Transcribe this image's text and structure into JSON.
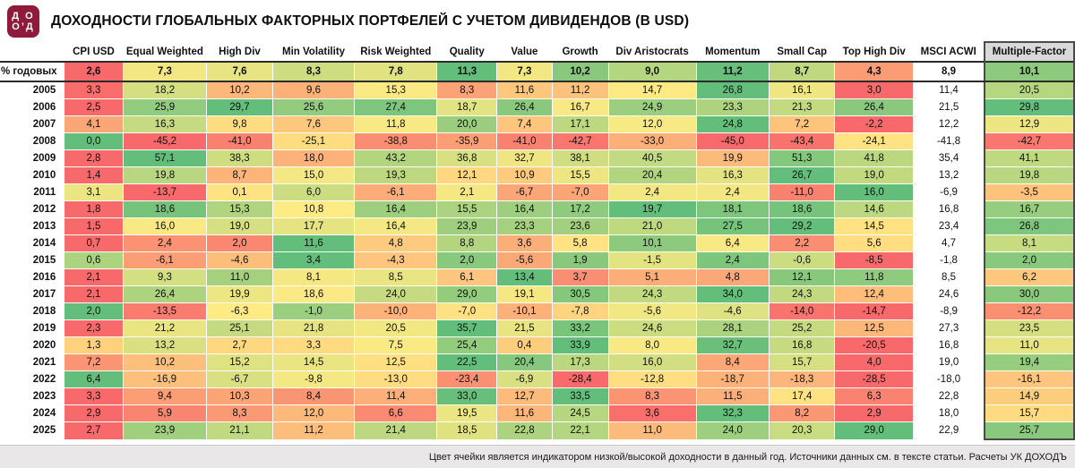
{
  "header": {
    "title": "ДОХОДНОСТИ ГЛОБАЛЬНЫХ ФАКТОРНЫХ ПОРТФЕЛЕЙ С УЧЕТОМ ДИВИДЕНДОВ (В USD)",
    "logo_line1": "Д О",
    "logo_line2": "О’Д"
  },
  "chart_data": {
    "type": "heatmap",
    "title": "ДОХОДНОСТИ ГЛОБАЛЬНЫХ ФАКТОРНЫХ ПОРТФЕЛЕЙ С УЧЕТОМ ДИВИДЕНДОВ (В USD)",
    "annualized_label": "% годовых",
    "columns": [
      "CPI USD",
      "Equal Weighted",
      "High Div",
      "Min Volatility",
      "Risk Weighted",
      "Quality",
      "Value",
      "Growth",
      "Div Aristocrats",
      "Momentum",
      "Small Cap",
      "Top High Div",
      "MSCI ACWI",
      "Multiple-Factor"
    ],
    "annualized": [
      "2,6",
      "7,3",
      "7,6",
      "8,3",
      "7,8",
      "11,3",
      "7,3",
      "10,2",
      "9,0",
      "11,2",
      "8,7",
      "4,3",
      "8,9",
      "10,1"
    ],
    "rows": [
      {
        "year": "2005",
        "values": [
          "3,3",
          "18,2",
          "10,2",
          "9,6",
          "15,3",
          "8,3",
          "11,6",
          "11,2",
          "14,7",
          "26,8",
          "16,1",
          "3,0",
          "11,4",
          "20,5"
        ]
      },
      {
        "year": "2006",
        "values": [
          "2,5",
          "25,9",
          "29,7",
          "25,6",
          "27,4",
          "18,7",
          "26,4",
          "16,7",
          "24,9",
          "23,3",
          "21,3",
          "26,4",
          "21,5",
          "29,8"
        ]
      },
      {
        "year": "2007",
        "values": [
          "4,1",
          "16,3",
          "9,8",
          "7,6",
          "11,8",
          "20,0",
          "7,4",
          "17,1",
          "12,0",
          "24,8",
          "7,2",
          "-2,2",
          "12,2",
          "12,9"
        ]
      },
      {
        "year": "2008",
        "values": [
          "0,0",
          "-45,2",
          "-41,0",
          "-25,1",
          "-38,8",
          "-35,9",
          "-41,0",
          "-42,7",
          "-33,0",
          "-45,0",
          "-43,4",
          "-24,1",
          "-41,8",
          "-42,7"
        ]
      },
      {
        "year": "2009",
        "values": [
          "2,8",
          "57,1",
          "38,3",
          "18,0",
          "43,2",
          "36,8",
          "32,7",
          "38,1",
          "40,5",
          "19,9",
          "51,3",
          "41,8",
          "35,4",
          "41,1"
        ]
      },
      {
        "year": "2010",
        "values": [
          "1,4",
          "19,8",
          "8,7",
          "15,0",
          "19,3",
          "12,1",
          "10,9",
          "15,5",
          "20,4",
          "16,3",
          "26,7",
          "19,0",
          "13,2",
          "19,8"
        ]
      },
      {
        "year": "2011",
        "values": [
          "3,1",
          "-13,7",
          "0,1",
          "6,0",
          "-6,1",
          "2,1",
          "-6,7",
          "-7,0",
          "2,4",
          "2,4",
          "-11,0",
          "16,0",
          "-6,9",
          "-3,5"
        ]
      },
      {
        "year": "2012",
        "values": [
          "1,8",
          "18,6",
          "15,3",
          "10,8",
          "16,4",
          "15,5",
          "16,4",
          "17,2",
          "19,7",
          "18,1",
          "18,6",
          "14,6",
          "16,8",
          "16,7"
        ]
      },
      {
        "year": "2013",
        "values": [
          "1,5",
          "16,0",
          "19,0",
          "17,7",
          "16,4",
          "23,9",
          "23,3",
          "23,6",
          "21,0",
          "27,5",
          "29,2",
          "14,5",
          "23,4",
          "26,8"
        ]
      },
      {
        "year": "2014",
        "values": [
          "0,7",
          "2,4",
          "2,0",
          "11,6",
          "4,8",
          "8,8",
          "3,6",
          "5,8",
          "10,1",
          "6,4",
          "2,2",
          "5,6",
          "4,7",
          "8,1"
        ]
      },
      {
        "year": "2015",
        "values": [
          "0,6",
          "-6,1",
          "-4,6",
          "3,4",
          "-4,3",
          "2,0",
          "-5,6",
          "1,9",
          "-1,5",
          "2,4",
          "-0,6",
          "-8,5",
          "-1,8",
          "2,0"
        ]
      },
      {
        "year": "2016",
        "values": [
          "2,1",
          "9,3",
          "11,0",
          "8,1",
          "8,5",
          "6,1",
          "13,4",
          "3,7",
          "5,1",
          "4,8",
          "12,1",
          "11,8",
          "8,5",
          "6,2"
        ]
      },
      {
        "year": "2017",
        "values": [
          "2,1",
          "26,4",
          "19,9",
          "18,6",
          "24,0",
          "29,0",
          "19,1",
          "30,5",
          "24,3",
          "34,0",
          "24,3",
          "12,4",
          "24,6",
          "30,0"
        ]
      },
      {
        "year": "2018",
        "values": [
          "2,0",
          "-13,5",
          "-6,3",
          "-1,0",
          "-10,0",
          "-7,0",
          "-10,1",
          "-7,8",
          "-5,6",
          "-4,6",
          "-14,0",
          "-14,7",
          "-8,9",
          "-12,2"
        ]
      },
      {
        "year": "2019",
        "values": [
          "2,3",
          "21,2",
          "25,1",
          "21,8",
          "20,5",
          "35,7",
          "21,5",
          "33,2",
          "24,6",
          "28,1",
          "25,2",
          "12,5",
          "27,3",
          "23,5"
        ]
      },
      {
        "year": "2020",
        "values": [
          "1,3",
          "13,2",
          "2,7",
          "3,3",
          "7,5",
          "25,4",
          "0,4",
          "33,9",
          "8,0",
          "32,7",
          "16,8",
          "-20,5",
          "16,8",
          "11,0"
        ]
      },
      {
        "year": "2021",
        "values": [
          "7,2",
          "10,2",
          "15,2",
          "14,5",
          "12,5",
          "22,5",
          "20,4",
          "17,3",
          "16,0",
          "8,4",
          "15,7",
          "4,0",
          "19,0",
          "19,4"
        ]
      },
      {
        "year": "2022",
        "values": [
          "6,4",
          "-16,9",
          "-6,7",
          "-9,8",
          "-13,0",
          "-23,4",
          "-6,9",
          "-28,4",
          "-12,8",
          "-18,7",
          "-18,3",
          "-28,5",
          "-18,0",
          "-16,1"
        ]
      },
      {
        "year": "2023",
        "values": [
          "3,3",
          "9,4",
          "10,3",
          "8,4",
          "11,4",
          "33,0",
          "12,7",
          "33,5",
          "8,3",
          "11,5",
          "17,4",
          "6,3",
          "22,8",
          "14,9"
        ]
      },
      {
        "year": "2024",
        "values": [
          "2,9",
          "5,9",
          "8,3",
          "12,0",
          "6,6",
          "19,5",
          "11,6",
          "24,5",
          "3,6",
          "32,3",
          "8,2",
          "2,9",
          "18,0",
          "15,7"
        ]
      },
      {
        "year": "2025",
        "values": [
          "2,7",
          "23,9",
          "21,1",
          "11,2",
          "21,4",
          "18,5",
          "22,8",
          "22,1",
          "11,0",
          "24,0",
          "20,3",
          "29,0",
          "22,9",
          "25,7"
        ]
      }
    ],
    "colorscale": {
      "min": "#F8696B",
      "mid": "#FFEB84",
      "max": "#63BE7B"
    },
    "uncolored_column": "MSCI ACWI",
    "highlighted_column": "Multiple-Factor",
    "legend_position": "none",
    "grid": false
  },
  "footer": {
    "note": "Цвет ячейки является индикатором низкой/высокой доходности в данный год. Источники данных см. в тексте статьи. Расчеты УК ДОХОДЪ"
  },
  "colors": {
    "logo_bg": "#8E1B3A",
    "highlight_header_bg": "#D9D9D9",
    "annual_row_border": "#2b2b2b"
  }
}
